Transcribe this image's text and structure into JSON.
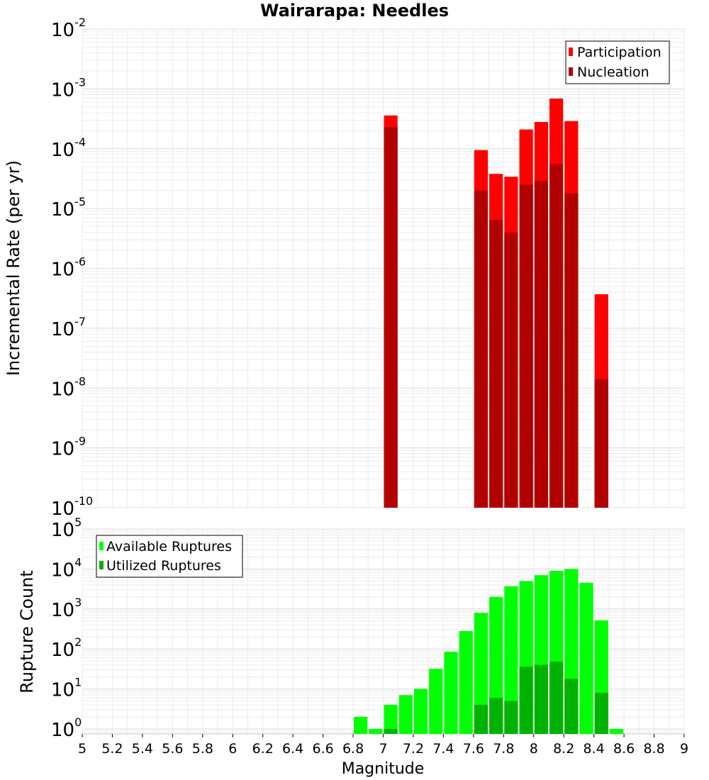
{
  "chart_data": [
    {
      "type": "bar",
      "title": "Wairarapa: Needles",
      "xlabel": "Magnitude",
      "ylabel": "Incremental Rate (per yr)",
      "yscale": "log",
      "xlim": [
        5,
        9
      ],
      "ylim": [
        1e-10,
        0.01
      ],
      "grid": true,
      "legend_position": "top-right",
      "bar_width": 0.1,
      "series": [
        {
          "name": "Participation",
          "color": "#ff0000",
          "points": [
            {
              "x": 7.05,
              "y": 0.00036
            },
            {
              "x": 7.65,
              "y": 9.5e-05
            },
            {
              "x": 7.75,
              "y": 3.8e-05
            },
            {
              "x": 7.85,
              "y": 3.4e-05
            },
            {
              "x": 7.95,
              "y": 0.00021
            },
            {
              "x": 8.05,
              "y": 0.00028
            },
            {
              "x": 8.15,
              "y": 0.00069
            },
            {
              "x": 8.25,
              "y": 0.00029
            },
            {
              "x": 8.45,
              "y": 3.7e-07
            }
          ]
        },
        {
          "name": "Nucleation",
          "color": "#b20000",
          "points": [
            {
              "x": 7.05,
              "y": 0.00023
            },
            {
              "x": 7.65,
              "y": 2e-05
            },
            {
              "x": 7.75,
              "y": 6.5e-06
            },
            {
              "x": 7.85,
              "y": 4e-06
            },
            {
              "x": 7.95,
              "y": 2.5e-05
            },
            {
              "x": 8.05,
              "y": 2.9e-05
            },
            {
              "x": 8.15,
              "y": 5.5e-05
            },
            {
              "x": 8.25,
              "y": 1.8e-05
            },
            {
              "x": 8.45,
              "y": 1.4e-08
            }
          ]
        }
      ]
    },
    {
      "type": "bar",
      "title": "",
      "xlabel": "Magnitude",
      "ylabel": "Rupture Count",
      "yscale": "log",
      "xlim": [
        5,
        9
      ],
      "ylim": [
        0.75,
        100000
      ],
      "grid": true,
      "legend_position": "top-left",
      "bar_width": 0.1,
      "series": [
        {
          "name": "Available Ruptures",
          "color": "#00ff00",
          "points": [
            {
              "x": 6.85,
              "y": 2
            },
            {
              "x": 6.95,
              "y": 1
            },
            {
              "x": 7.05,
              "y": 4
            },
            {
              "x": 7.15,
              "y": 7
            },
            {
              "x": 7.25,
              "y": 10
            },
            {
              "x": 7.35,
              "y": 32
            },
            {
              "x": 7.45,
              "y": 85
            },
            {
              "x": 7.55,
              "y": 280
            },
            {
              "x": 7.65,
              "y": 800
            },
            {
              "x": 7.75,
              "y": 2000
            },
            {
              "x": 7.85,
              "y": 3700
            },
            {
              "x": 7.95,
              "y": 5000
            },
            {
              "x": 8.05,
              "y": 7000
            },
            {
              "x": 8.15,
              "y": 9000
            },
            {
              "x": 8.25,
              "y": 10000
            },
            {
              "x": 8.35,
              "y": 4500
            },
            {
              "x": 8.45,
              "y": 520
            },
            {
              "x": 8.55,
              "y": 1
            }
          ]
        },
        {
          "name": "Utilized Ruptures",
          "color": "#00b200",
          "points": [
            {
              "x": 7.05,
              "y": 1
            },
            {
              "x": 7.65,
              "y": 4
            },
            {
              "x": 7.75,
              "y": 6
            },
            {
              "x": 7.85,
              "y": 5
            },
            {
              "x": 7.95,
              "y": 36
            },
            {
              "x": 8.05,
              "y": 40
            },
            {
              "x": 8.15,
              "y": 48
            },
            {
              "x": 8.25,
              "y": 18
            },
            {
              "x": 8.45,
              "y": 8
            }
          ]
        }
      ],
      "xticks": [
        "5",
        "5.2",
        "5.4",
        "5.6",
        "5.8",
        "6",
        "6.2",
        "6.4",
        "6.6",
        "6.8",
        "7",
        "7.2",
        "7.4",
        "7.6",
        "7.8",
        "8",
        "8.2",
        "8.4",
        "8.6",
        "8.8",
        "9"
      ]
    }
  ]
}
